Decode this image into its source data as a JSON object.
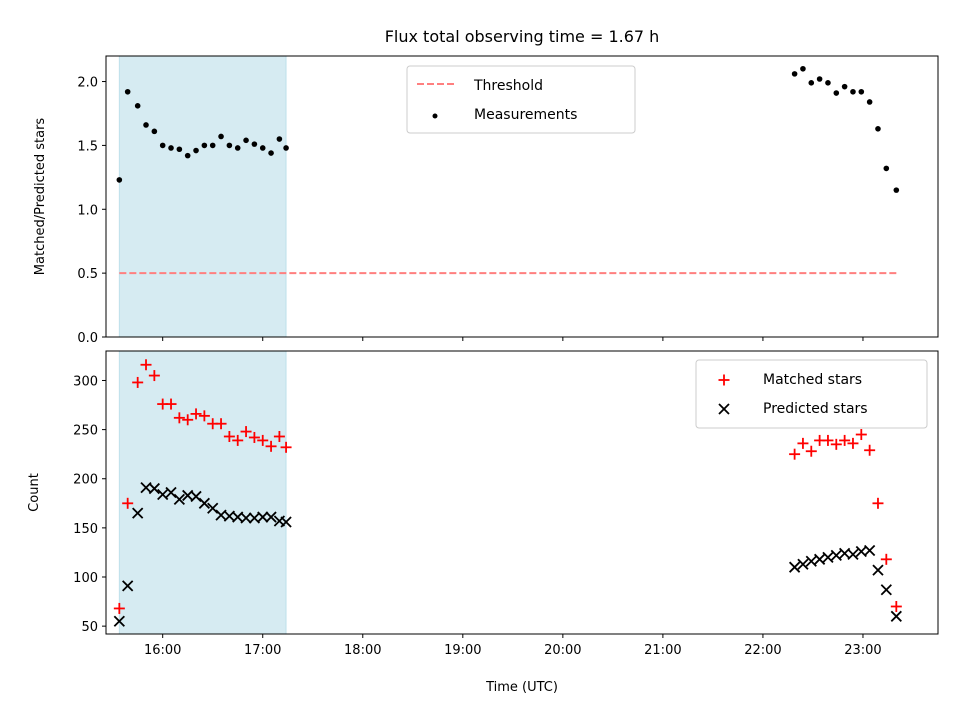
{
  "chart_data": [
    {
      "type": "scatter",
      "title": "Flux total observing time = 1.67 h",
      "xlabel": "",
      "ylabel": "Matched/Predicted stars",
      "x_unit": "time of day (UTC), HH:MM",
      "xlim": [
        "15:26",
        "23:45"
      ],
      "ylim": [
        0,
        2.2
      ],
      "yticks": [
        0.0,
        0.5,
        1.0,
        1.5,
        2.0
      ],
      "ytick_labels": [
        "0.0",
        "0.5",
        "1.0",
        "1.5",
        "2.0"
      ],
      "xticks": [
        "16:00",
        "17:00",
        "18:00",
        "19:00",
        "20:00",
        "21:00",
        "22:00",
        "23:00"
      ],
      "grid": false,
      "legend_position": "top-center",
      "shaded_span": {
        "x_start": "15:34",
        "x_end": "17:14",
        "color": "#add8e6"
      },
      "series": [
        {
          "name": "Threshold",
          "style": "dashed-line",
          "color": "#ff7f7f",
          "x": [
            "15:34",
            "23:20"
          ],
          "y": [
            0.5,
            0.5
          ]
        },
        {
          "name": "Measurements",
          "style": "dot",
          "color": "#000000",
          "x": [
            "15:34",
            "15:39",
            "15:45",
            "15:50",
            "15:55",
            "16:00",
            "16:05",
            "16:10",
            "16:15",
            "16:20",
            "16:25",
            "16:30",
            "16:35",
            "16:40",
            "16:45",
            "16:50",
            "16:55",
            "17:00",
            "17:05",
            "17:10",
            "17:14",
            "22:19",
            "22:24",
            "22:29",
            "22:34",
            "22:39",
            "22:44",
            "22:49",
            "22:54",
            "22:59",
            "23:04",
            "23:09",
            "23:14",
            "23:20"
          ],
          "y": [
            1.23,
            1.92,
            1.81,
            1.66,
            1.61,
            1.5,
            1.48,
            1.47,
            1.42,
            1.46,
            1.5,
            1.5,
            1.57,
            1.5,
            1.48,
            1.54,
            1.51,
            1.48,
            1.44,
            1.55,
            1.48,
            2.06,
            2.1,
            1.99,
            2.02,
            1.99,
            1.91,
            1.96,
            1.92,
            1.92,
            1.84,
            1.63,
            1.32,
            1.15
          ]
        }
      ]
    },
    {
      "type": "scatter",
      "title": "",
      "xlabel": "Time (UTC)",
      "ylabel": "Count",
      "x_unit": "time of day (UTC), HH:MM",
      "xlim": [
        "15:26",
        "23:45"
      ],
      "ylim": [
        42,
        330
      ],
      "yticks": [
        50,
        100,
        150,
        200,
        250,
        300
      ],
      "ytick_labels": [
        "50",
        "100",
        "150",
        "200",
        "250",
        "300"
      ],
      "xticks": [
        "16:00",
        "17:00",
        "18:00",
        "19:00",
        "20:00",
        "21:00",
        "22:00",
        "23:00"
      ],
      "grid": false,
      "legend_position": "top-right",
      "shaded_span": {
        "x_start": "15:34",
        "x_end": "17:14",
        "color": "#add8e6"
      },
      "series": [
        {
          "name": "Matched stars",
          "style": "plus",
          "color": "#ff0000",
          "x": [
            "15:34",
            "15:39",
            "15:45",
            "15:50",
            "15:55",
            "16:00",
            "16:05",
            "16:10",
            "16:15",
            "16:20",
            "16:25",
            "16:30",
            "16:35",
            "16:40",
            "16:45",
            "16:50",
            "16:55",
            "17:00",
            "17:05",
            "17:10",
            "17:14",
            "22:19",
            "22:24",
            "22:29",
            "22:34",
            "22:39",
            "22:44",
            "22:49",
            "22:54",
            "22:59",
            "23:04",
            "23:09",
            "23:14",
            "23:20"
          ],
          "y": [
            68,
            175,
            298,
            316,
            305,
            276,
            276,
            262,
            260,
            266,
            264,
            256,
            256,
            243,
            239,
            248,
            242,
            239,
            233,
            243,
            232,
            225,
            236,
            228,
            239,
            239,
            235,
            239,
            236,
            245,
            229,
            175,
            118,
            70
          ]
        },
        {
          "name": "Predicted stars",
          "style": "x",
          "color": "#000000",
          "x": [
            "15:34",
            "15:39",
            "15:45",
            "15:50",
            "15:55",
            "16:00",
            "16:05",
            "16:10",
            "16:15",
            "16:20",
            "16:25",
            "16:30",
            "16:35",
            "16:40",
            "16:45",
            "16:50",
            "16:55",
            "17:00",
            "17:05",
            "17:10",
            "17:14",
            "22:19",
            "22:24",
            "22:29",
            "22:34",
            "22:39",
            "22:44",
            "22:49",
            "22:54",
            "22:59",
            "23:04",
            "23:09",
            "23:14",
            "23:20"
          ],
          "y": [
            55,
            91,
            165,
            191,
            190,
            184,
            186,
            179,
            183,
            182,
            175,
            170,
            163,
            162,
            161,
            160,
            160,
            161,
            161,
            157,
            156,
            110,
            113,
            116,
            118,
            120,
            122,
            124,
            123,
            126,
            127,
            107,
            87,
            60
          ]
        }
      ]
    }
  ]
}
